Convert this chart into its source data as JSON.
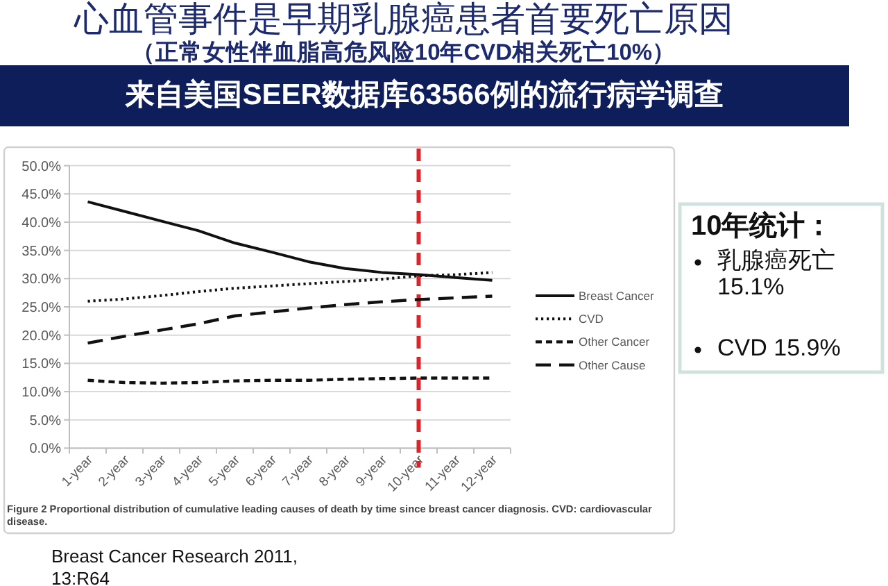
{
  "chart_data": {
    "type": "line",
    "title": "心血管事件是早期乳腺癌患者首要死亡原因",
    "subtitle": "（正常女性伴血脂高危风险10年CVD相关死亡10%）",
    "categories": [
      "1-year",
      "2-year",
      "3-year",
      "4-year",
      "5-year",
      "6-year",
      "7-year",
      "8-year",
      "9-year",
      "10-year",
      "11-year",
      "12-year"
    ],
    "series": [
      {
        "name": "Breast Cancer",
        "color": "#111111",
        "line_style": "solid",
        "values": [
          43.6,
          41.9,
          40.2,
          38.5,
          36.3,
          34.7,
          33.0,
          31.8,
          31.1,
          30.7,
          30.2,
          29.7
        ]
      },
      {
        "name": "CVD",
        "color": "#111111",
        "line_style": "dotted",
        "values": [
          26.0,
          26.4,
          27.0,
          27.7,
          28.3,
          28.7,
          29.1,
          29.5,
          29.9,
          30.5,
          30.7,
          31.1
        ]
      },
      {
        "name": "Other Cancer",
        "color": "#111111",
        "line_style": "dashed",
        "values": [
          12.0,
          11.6,
          11.5,
          11.6,
          11.9,
          12.0,
          12.0,
          12.2,
          12.3,
          12.4,
          12.4,
          12.4
        ]
      },
      {
        "name": "Other Cause",
        "color": "#111111",
        "line_style": "dashed",
        "values": [
          18.6,
          19.8,
          20.9,
          22.0,
          23.4,
          24.1,
          24.8,
          25.4,
          25.9,
          26.3,
          26.6,
          26.9
        ]
      }
    ],
    "ylim": [
      0,
      50
    ],
    "yticks": [
      {
        "value": 0,
        "label": "0.0%"
      },
      {
        "value": 5,
        "label": "5.0%"
      },
      {
        "value": 10,
        "label": "10.0%"
      },
      {
        "value": 15,
        "label": "15.0%"
      },
      {
        "value": 20,
        "label": "20.0%"
      },
      {
        "value": 25,
        "label": "25.0%"
      },
      {
        "value": 30,
        "label": "30.0%"
      },
      {
        "value": 35,
        "label": "35.0%"
      },
      {
        "value": 40,
        "label": "40.0%"
      },
      {
        "value": 45,
        "label": "45.0%"
      },
      {
        "value": 50,
        "label": "50.0%"
      }
    ],
    "grid": "y",
    "legend": "right",
    "ref_lines": [
      {
        "axis": "x",
        "value": "10-year",
        "color": "#d9262c",
        "line_style": "dashed"
      }
    ],
    "annotations": [
      "来自美国SEER数据库63566例的流行病学调查",
      "10年统计：",
      "乳腺癌死亡 15.1%",
      "CVD 15.9%",
      "Figure 2 Proportional distribution of cumulative leading causes of death by time since breast cancer diagnosis. CVD: cardiovascular disease.",
      "Breast Cancer Research 2011, 13:R64"
    ]
  }
}
